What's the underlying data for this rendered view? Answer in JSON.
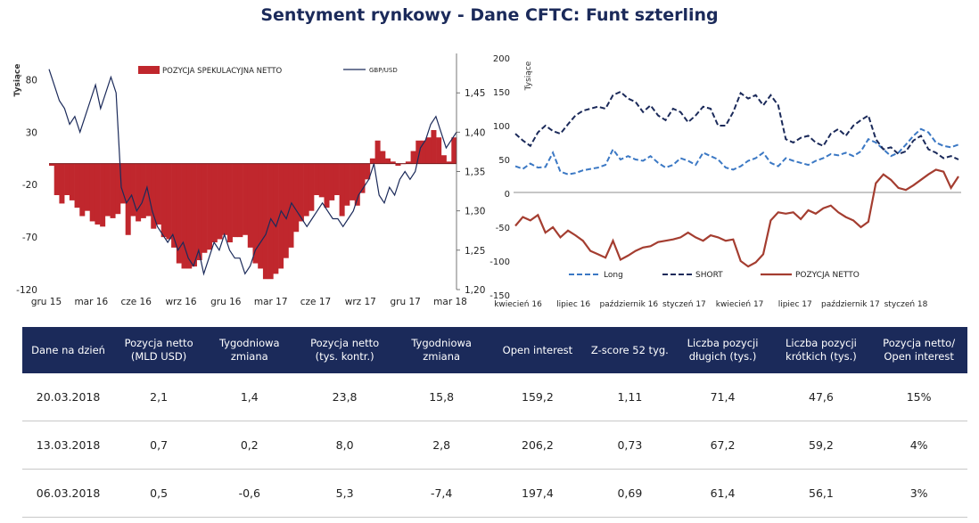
{
  "title": "Sentyment rynkowy - Dane CFTC:  Funt szterling",
  "colors": {
    "navy": "#1b2a5a",
    "bar_red": "#c0272d",
    "net_brown": "#a43d30",
    "long_blue": "#3b78c4",
    "short_navy": "#1b2a5a"
  },
  "chart_data": [
    {
      "type": "bar",
      "ylabel": "Tysiące",
      "y2label": "",
      "ylim": [
        -120,
        105
      ],
      "y2lim": [
        1.2,
        1.5
      ],
      "yticks": [
        "80",
        "30",
        "-20",
        "-70",
        "-120"
      ],
      "y2ticks": [
        "1,45",
        "1,40",
        "1,35",
        "1,30",
        "1,25",
        "1,20"
      ],
      "xticks": [
        "gru 15",
        "mar 16",
        "cze 16",
        "wrz 16",
        "gru 16",
        "mar 17",
        "cze 17",
        "wrz 17",
        "gru 17",
        "mar 18"
      ],
      "legend": [
        "POZYCJA SPEKULACYJNA NETTO",
        "GBP/USD"
      ],
      "series": [
        {
          "name": "POZYCJA SPEKULACYJNA NETTO",
          "values": [
            -2,
            -30,
            -38,
            -30,
            -35,
            -42,
            -50,
            -45,
            -55,
            -58,
            -60,
            -50,
            -52,
            -48,
            -38,
            -68,
            -50,
            -55,
            -52,
            -50,
            -62,
            -58,
            -70,
            -72,
            -80,
            -95,
            -100,
            -100,
            -98,
            -92,
            -85,
            -82,
            -75,
            -72,
            -68,
            -75,
            -70,
            -70,
            -68,
            -80,
            -95,
            -100,
            -110,
            -110,
            -105,
            -100,
            -90,
            -80,
            -65,
            -55,
            -50,
            -45,
            -30,
            -32,
            -42,
            -35,
            -30,
            -50,
            -40,
            -35,
            -40,
            -28,
            -15,
            5,
            22,
            12,
            5,
            2,
            -2,
            0,
            2,
            12,
            22,
            22,
            25,
            32,
            25,
            8,
            2,
            25
          ]
        },
        {
          "name": "GBP/USD",
          "values": [
            1.48,
            1.46,
            1.44,
            1.43,
            1.41,
            1.42,
            1.4,
            1.42,
            1.44,
            1.46,
            1.43,
            1.45,
            1.47,
            1.45,
            1.33,
            1.31,
            1.32,
            1.3,
            1.31,
            1.33,
            1.3,
            1.28,
            1.27,
            1.26,
            1.27,
            1.25,
            1.26,
            1.24,
            1.23,
            1.25,
            1.22,
            1.24,
            1.26,
            1.25,
            1.27,
            1.25,
            1.24,
            1.24,
            1.22,
            1.23,
            1.25,
            1.26,
            1.27,
            1.29,
            1.28,
            1.3,
            1.29,
            1.31,
            1.3,
            1.29,
            1.28,
            1.29,
            1.3,
            1.31,
            1.3,
            1.29,
            1.29,
            1.28,
            1.29,
            1.3,
            1.32,
            1.33,
            1.34,
            1.36,
            1.32,
            1.31,
            1.33,
            1.32,
            1.34,
            1.35,
            1.34,
            1.35,
            1.38,
            1.39,
            1.41,
            1.42,
            1.4,
            1.38,
            1.39,
            1.4
          ]
        }
      ]
    },
    {
      "type": "line",
      "ylabel": "Tysiące",
      "ylim": [
        -150,
        200
      ],
      "yticks": [
        "200",
        "150",
        "100",
        "50",
        "0",
        "-50",
        "-100",
        "-150"
      ],
      "xticks": [
        "kwiecień 16",
        "lipiec 16",
        "październik 16",
        "styczeń 17",
        "kwiecień 17",
        "lipiec 17",
        "październik 17",
        "styczeń 18"
      ],
      "legend": [
        "Long",
        "SHORT",
        "POZYCJA NETTO"
      ],
      "series": [
        {
          "name": "Long",
          "values": [
            40,
            36,
            44,
            38,
            39,
            60,
            32,
            28,
            30,
            34,
            36,
            38,
            42,
            65,
            50,
            55,
            50,
            48,
            55,
            45,
            38,
            42,
            52,
            48,
            42,
            60,
            55,
            50,
            38,
            35,
            40,
            48,
            52,
            60,
            45,
            40,
            52,
            48,
            45,
            42,
            48,
            52,
            58,
            56,
            60,
            55,
            62,
            80,
            75,
            65,
            55,
            60,
            72,
            85,
            95,
            90,
            75,
            70,
            68,
            72
          ]
        },
        {
          "name": "SHORT",
          "values": [
            88,
            78,
            70,
            90,
            100,
            92,
            88,
            102,
            115,
            122,
            125,
            128,
            125,
            145,
            150,
            140,
            135,
            120,
            130,
            115,
            108,
            125,
            120,
            105,
            115,
            128,
            125,
            100,
            100,
            120,
            148,
            140,
            145,
            130,
            145,
            130,
            80,
            75,
            82,
            85,
            75,
            70,
            88,
            95,
            85,
            100,
            108,
            115,
            80,
            65,
            68,
            58,
            62,
            78,
            85,
            65,
            60,
            52,
            55,
            50
          ]
        },
        {
          "name": "POZYCJA NETTO",
          "values": [
            -48,
            -35,
            -40,
            -32,
            -58,
            -50,
            -65,
            -55,
            -62,
            -70,
            -85,
            -90,
            -95,
            -70,
            -98,
            -92,
            -85,
            -80,
            -78,
            -72,
            -70,
            -68,
            -65,
            -58,
            -65,
            -70,
            -62,
            -65,
            -70,
            -68,
            -100,
            -108,
            -102,
            -90,
            -40,
            -28,
            -30,
            -28,
            -38,
            -25,
            -30,
            -22,
            -18,
            -28,
            -35,
            -40,
            -50,
            -42,
            15,
            28,
            20,
            8,
            5,
            12,
            20,
            28,
            35,
            32,
            8,
            25
          ]
        }
      ]
    }
  ],
  "table": {
    "headers": [
      "Dane na dzień",
      "Pozycja netto (MLD USD)",
      "Tygodniowa zmiana",
      "Pozycja netto (tys. kontr.)",
      "Tygodniowa zmiana",
      "Open interest",
      "Z-score 52 tyg.",
      "Liczba pozycji długich (tys.)",
      "Liczba pozycji krótkich (tys.)",
      "Pozycja netto/ Open interest"
    ],
    "rows": [
      [
        "20.03.2018",
        "2,1",
        "1,4",
        "23,8",
        "15,8",
        "159,2",
        "1,11",
        "71,4",
        "47,6",
        "15%"
      ],
      [
        "13.03.2018",
        "0,7",
        "0,2",
        "8,0",
        "2,8",
        "206,2",
        "0,73",
        "67,2",
        "59,2",
        "4%"
      ],
      [
        "06.03.2018",
        "0,5",
        "-0,6",
        "5,3",
        "-7,4",
        "197,4",
        "0,69",
        "61,4",
        "56,1",
        "3%"
      ]
    ]
  }
}
